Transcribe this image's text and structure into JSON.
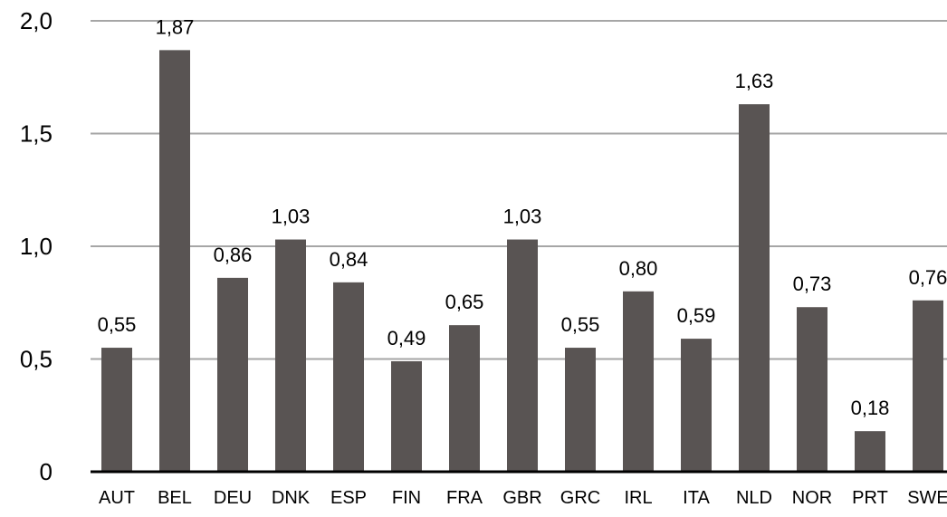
{
  "chart_data": {
    "type": "bar",
    "title": "",
    "xlabel": "",
    "ylabel": "",
    "categories": [
      "AUT",
      "BEL",
      "DEU",
      "DNK",
      "ESP",
      "FIN",
      "FRA",
      "GBR",
      "GRC",
      "IRL",
      "ITA",
      "NLD",
      "NOR",
      "PRT",
      "SWE"
    ],
    "values": [
      0.55,
      1.87,
      0.86,
      1.03,
      0.84,
      0.49,
      0.65,
      1.03,
      0.55,
      0.8,
      0.59,
      1.63,
      0.73,
      0.18,
      0.76
    ],
    "data_labels": [
      "0,55",
      "1,87",
      "0,86",
      "1,03",
      "0,84",
      "0,49",
      "0,65",
      "1,03",
      "0,55",
      "0,80",
      "0,59",
      "1,63",
      "0,73",
      "0,18",
      "0,76"
    ],
    "ylim": [
      0,
      2.0
    ],
    "y_ticks": [
      0,
      0.5,
      1.0,
      1.5,
      2.0
    ],
    "y_tick_labels": [
      "0",
      "0,5",
      "1,0",
      "1,5",
      "2,0"
    ],
    "grid": true,
    "legend": "none",
    "colors": {
      "bar": "#595453",
      "grid": "#a6a6a6",
      "axis": "#000000",
      "text": "#000000"
    }
  }
}
